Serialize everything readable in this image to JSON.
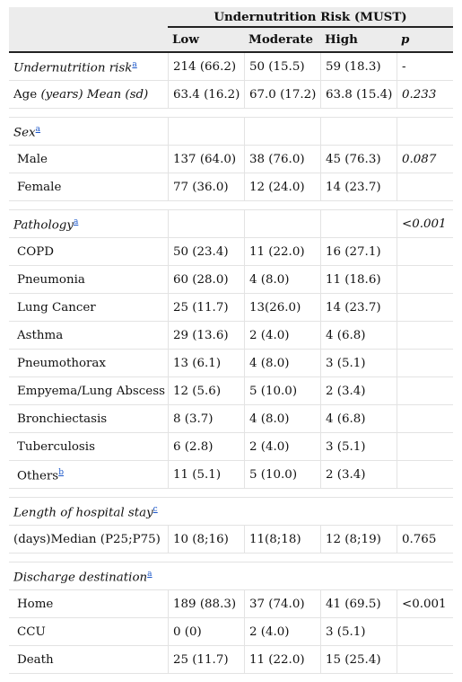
{
  "header": {
    "group_title": "Undernutrition Risk (MUST)",
    "col_low": "Low",
    "col_moderate": "Moderate",
    "col_high": "High",
    "col_p": "p"
  },
  "rows": {
    "risk": {
      "label": "Undernutrition risk",
      "sup": "a",
      "low": "214 (66.2)",
      "moderate": "50 (15.5)",
      "high": "59 (18.3)",
      "p": "-"
    },
    "age": {
      "label_a": "Age ",
      "label_b": "(years) Mean (sd)",
      "low": "63.4 (16.2)",
      "moderate": "67.0 (17.2)",
      "high": "63.8 (15.4)",
      "p": "0.233"
    },
    "sex": {
      "label": "Sex",
      "sup": "a"
    },
    "male": {
      "label": "Male",
      "low": "137 (64.0)",
      "moderate": "38 (76.0)",
      "high": "45 (76.3)",
      "p": "0.087"
    },
    "female": {
      "label": "Female",
      "low": "77 (36.0)",
      "moderate": "12 (24.0)",
      "high": "14 (23.7)",
      "p": ""
    },
    "pathology": {
      "label": "Pathology",
      "sup": "a",
      "p": "<0.001"
    },
    "copd": {
      "label": "COPD",
      "low": "50 (23.4)",
      "moderate": "11 (22.0)",
      "high": "16 (27.1)",
      "p": ""
    },
    "pneumonia": {
      "label": "Pneumonia",
      "low": "60 (28.0)",
      "moderate": "4 (8.0)",
      "high": "11 (18.6)",
      "p": ""
    },
    "lung_cancer": {
      "label": "Lung Cancer",
      "low": "25 (11.7)",
      "moderate": "13(26.0)",
      "high": "14 (23.7)",
      "p": ""
    },
    "asthma": {
      "label": "Asthma",
      "low": "29 (13.6)",
      "moderate": "2 (4.0)",
      "high": "4 (6.8)",
      "p": ""
    },
    "pneumothorax": {
      "label": "Pneumothorax",
      "low": "13 (6.1)",
      "moderate": "4 (8.0)",
      "high": "3 (5.1)",
      "p": ""
    },
    "empyema": {
      "label": "Empyema/Lung Abscess",
      "low": "12 (5.6)",
      "moderate": "5 (10.0)",
      "high": "2 (3.4)",
      "p": ""
    },
    "bronchiectasis": {
      "label": "Bronchiectasis",
      "low": "8 (3.7)",
      "moderate": "4 (8.0)",
      "high": "4 (6.8)",
      "p": ""
    },
    "tuberculosis": {
      "label": "Tuberculosis",
      "low": "6 (2.8)",
      "moderate": "2 (4.0)",
      "high": "3 (5.1)",
      "p": ""
    },
    "others": {
      "label": "Others",
      "sup": "b",
      "low": "11 (5.1)",
      "moderate": "5 (10.0)",
      "high": "2 (3.4)",
      "p": ""
    },
    "los": {
      "label": "Length of hospital stay",
      "sup": "c"
    },
    "los_median": {
      "label": "(days)Median (P25;P75)",
      "low": "10 (8;16)",
      "moderate": "11(8;18)",
      "high": "12 (8;19)",
      "p": "0.765"
    },
    "discharge": {
      "label": "Discharge destination",
      "sup": "a"
    },
    "home": {
      "label": "Home",
      "low": "189 (88.3)",
      "moderate": "37 (74.0)",
      "high": "41 (69.5)",
      "p": "<0.001"
    },
    "ccu": {
      "label": "CCU",
      "low": "0 (0)",
      "moderate": "2 (4.0)",
      "high": "3 (5.1)",
      "p": ""
    },
    "death": {
      "label": "Death",
      "low": "25 (11.7)",
      "moderate": "11 (22.0)",
      "high": "15 (25.4)",
      "p": ""
    }
  }
}
